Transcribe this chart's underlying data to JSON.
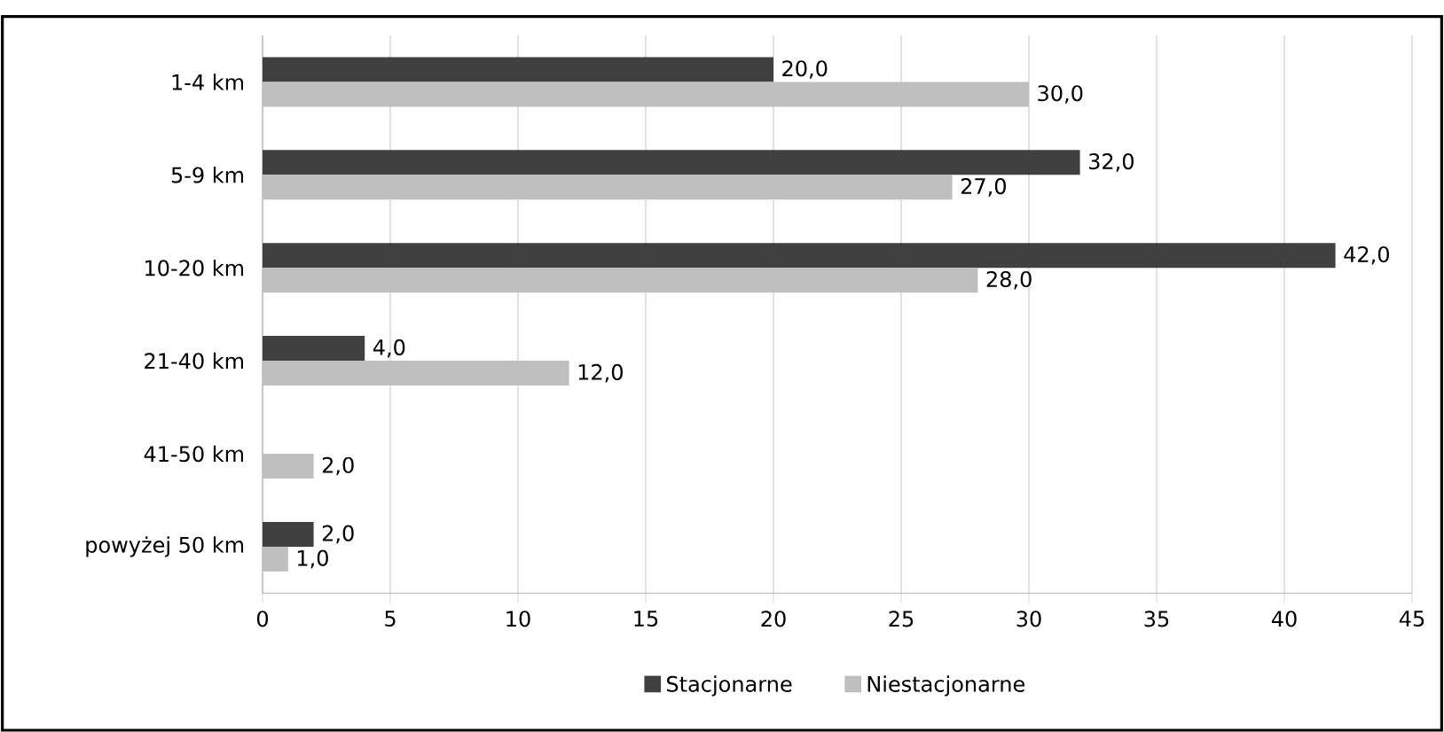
{
  "chart_data": {
    "type": "bar",
    "orientation": "horizontal",
    "categories": [
      "1-4 km",
      "5-9 km",
      "10-20 km",
      "21-40 km",
      "41-50 km",
      "powyżej 50 km"
    ],
    "series": [
      {
        "name": "Stacjonarne",
        "color": "#404040",
        "values": [
          20,
          32,
          42,
          4,
          null,
          2
        ],
        "value_labels": [
          "20,0",
          "32,0",
          "42,0",
          "4,0",
          null,
          "2,0"
        ]
      },
      {
        "name": "Niestacjonarne",
        "color": "#bfbfbf",
        "values": [
          30,
          27,
          28,
          12,
          2,
          1
        ],
        "value_labels": [
          "30,0",
          "27,0",
          "28,0",
          "12,0",
          "2,0",
          "1,0"
        ]
      }
    ],
    "xlim": [
      0,
      45
    ],
    "xticks": [
      0,
      5,
      10,
      15,
      20,
      25,
      30,
      35,
      40,
      45
    ],
    "grid": "x",
    "legend": "bottom"
  }
}
